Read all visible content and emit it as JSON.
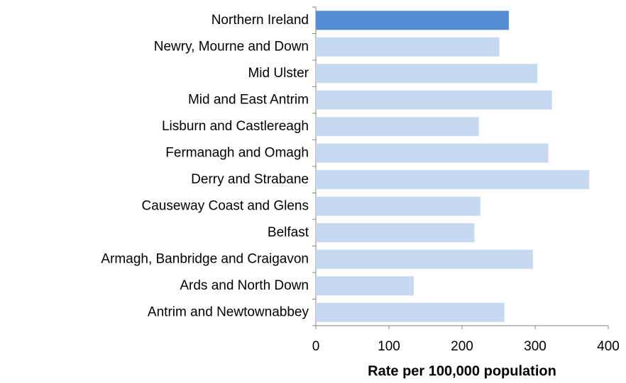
{
  "chart_data": {
    "type": "barh",
    "categories": [
      "Northern Ireland",
      "Newry, Mourne and Down",
      "Mid Ulster",
      "Mid and East Antrim",
      "Lisburn and Castlereagh",
      "Fermanagh and Omagh",
      "Derry and Strabane",
      "Causeway Coast and Glens",
      "Belfast",
      "Armagh, Banbridge and Craigavon",
      "Ards and North Down",
      "Antrim and Newtownabbey"
    ],
    "values": [
      264,
      251,
      303,
      323,
      223,
      318,
      374,
      225,
      217,
      297,
      134,
      258
    ],
    "colors": [
      "#558ed5",
      "#c6d9f1",
      "#c6d9f1",
      "#c6d9f1",
      "#c6d9f1",
      "#c6d9f1",
      "#c6d9f1",
      "#c6d9f1",
      "#c6d9f1",
      "#c6d9f1",
      "#c6d9f1",
      "#c6d9f1"
    ],
    "x_label": "Rate per 100,000 population",
    "xlim": [
      0,
      400
    ],
    "xticks": [
      0,
      100,
      200,
      300,
      400
    ],
    "grid": false
  }
}
